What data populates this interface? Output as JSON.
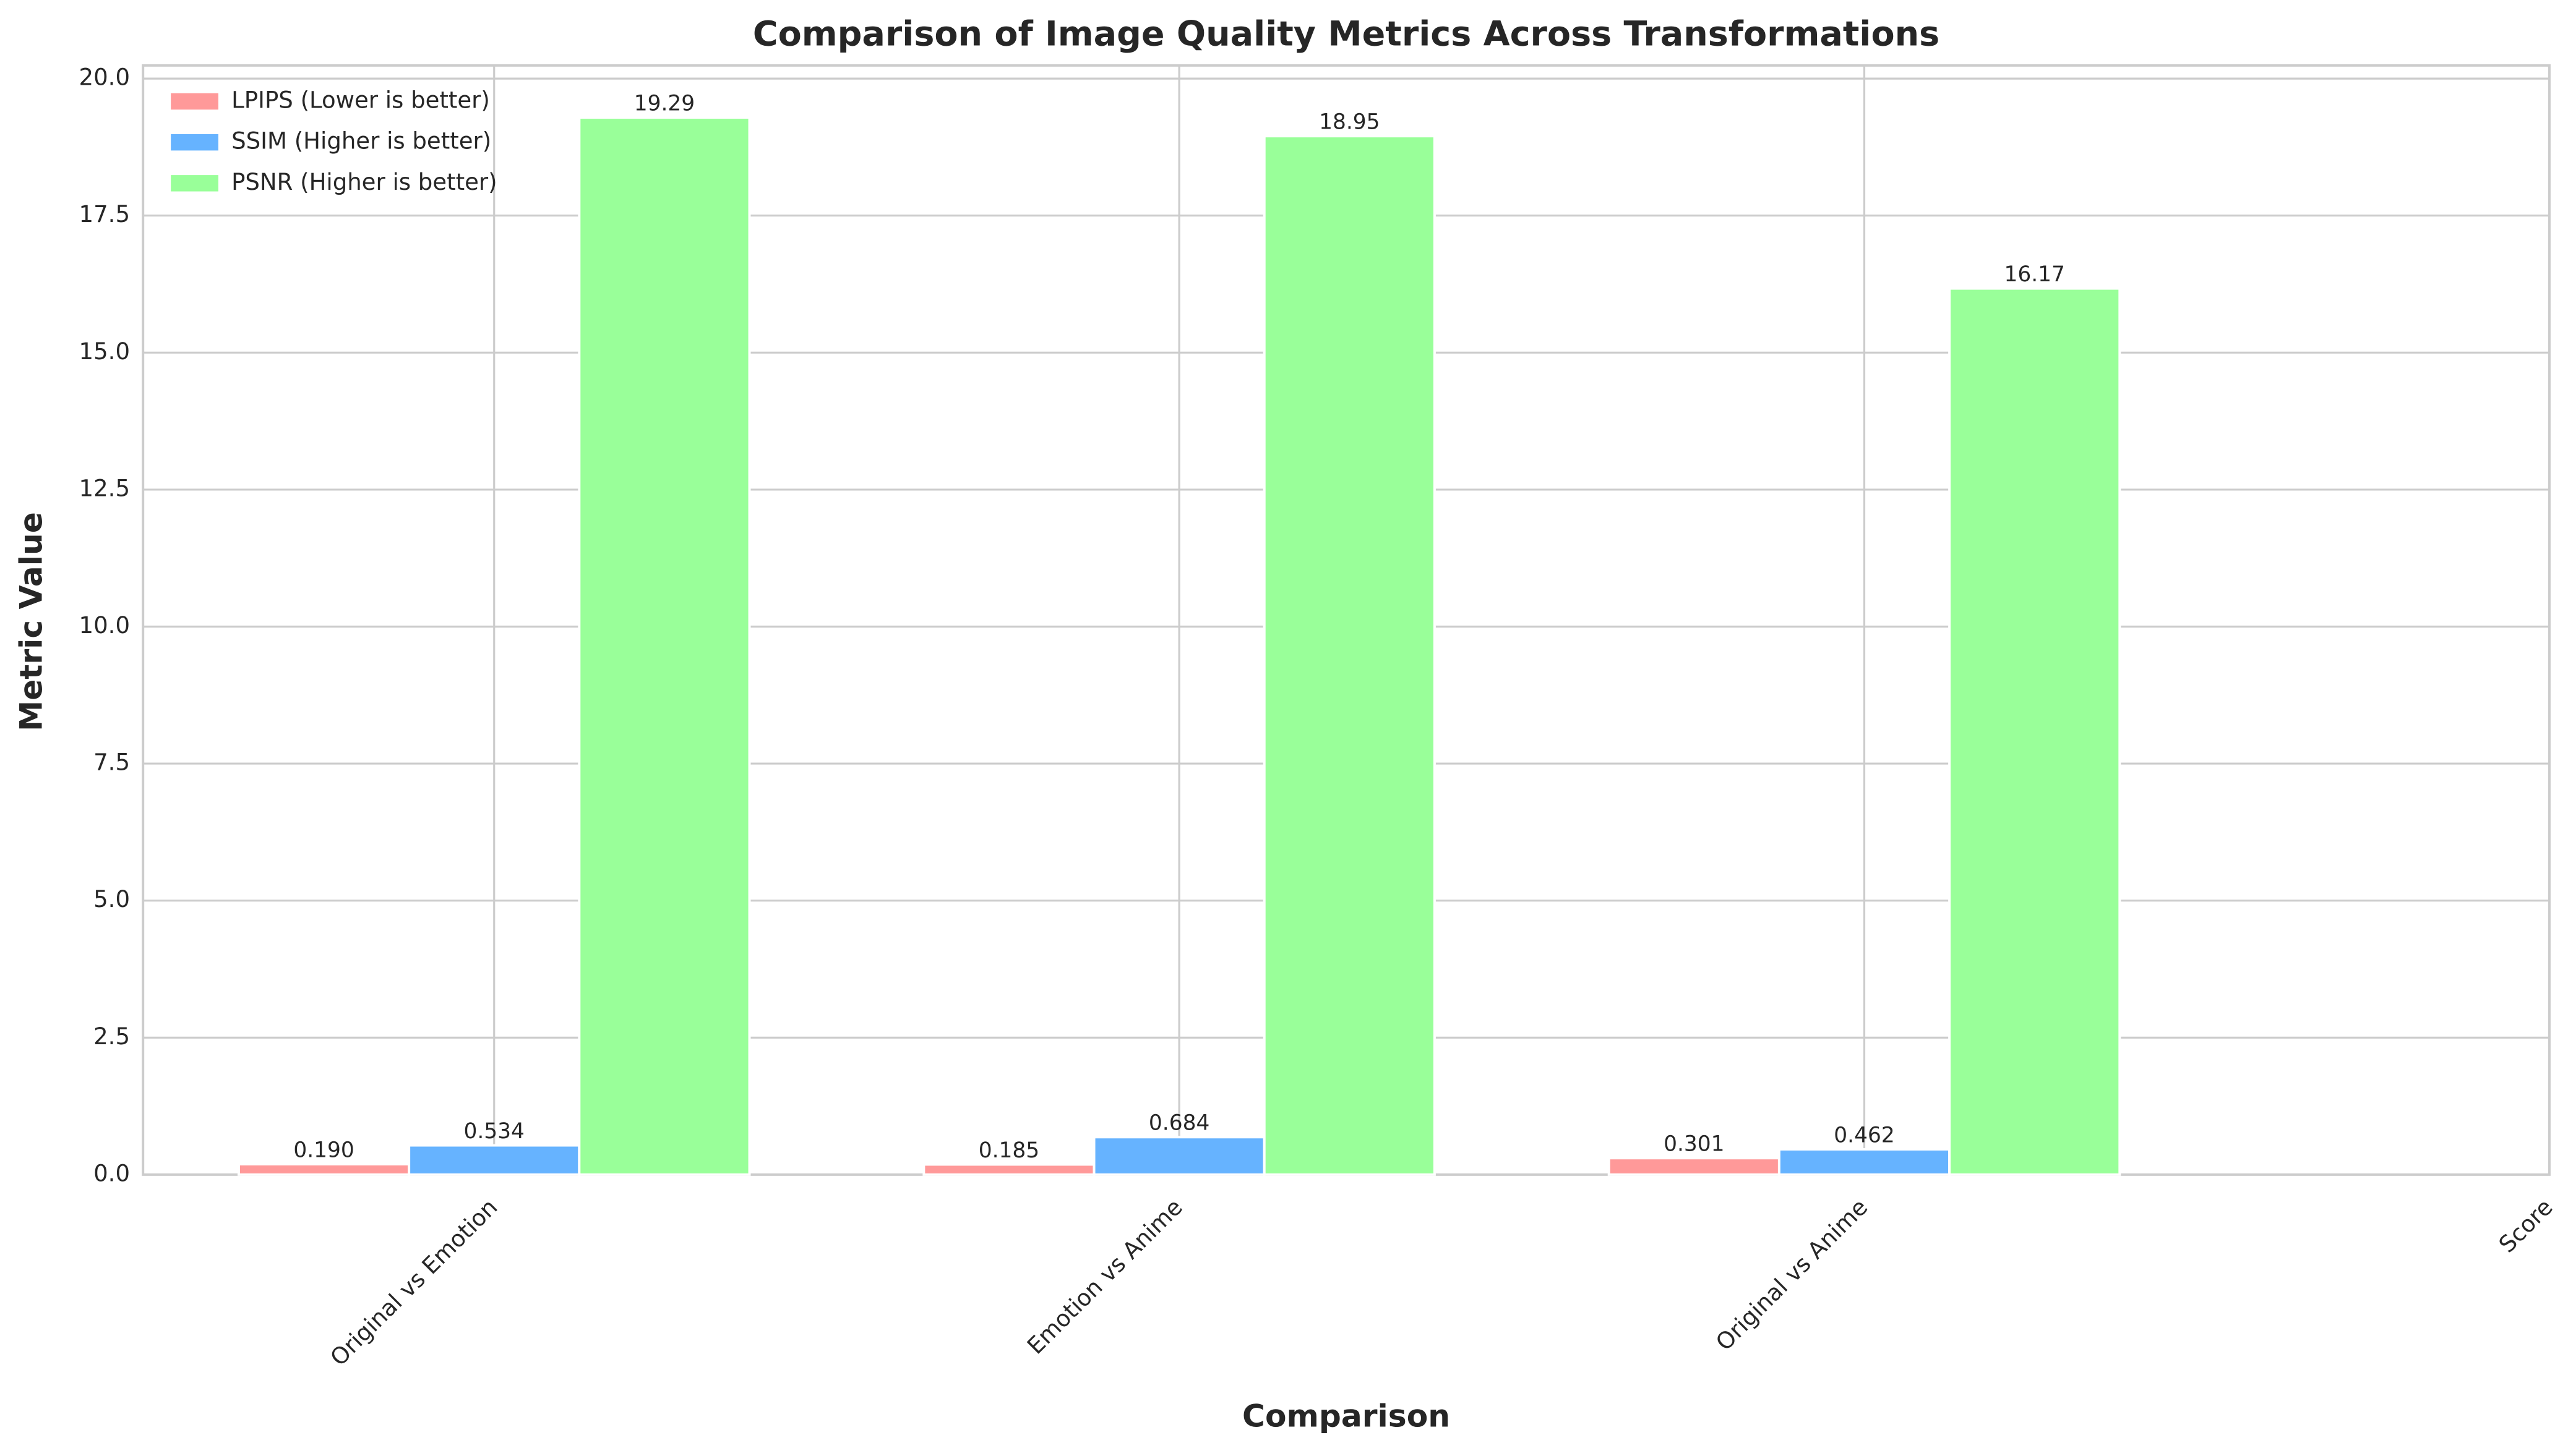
{
  "chart_data": {
    "type": "bar",
    "title": "Comparison of Image Quality Metrics Across Transformations",
    "xlabel": "Comparison",
    "ylabel": "Metric Value",
    "categories": [
      "Original vs Emotion",
      "Emotion vs Anime",
      "Original vs Anime",
      "Score"
    ],
    "series": [
      {
        "name": "LPIPS (Lower is better)",
        "color": "#ff9999",
        "values": [
          0.19,
          0.185,
          0.301,
          null
        ],
        "value_labels": [
          "0.190",
          "0.185",
          "0.301",
          null
        ]
      },
      {
        "name": "SSIM (Higher is better)",
        "color": "#66b3ff",
        "values": [
          0.534,
          0.684,
          0.462,
          null
        ]
      },
      {
        "name": "PSNR (Higher is better)",
        "color": "#99ff99",
        "values": [
          19.29,
          18.95,
          16.17,
          null
        ]
      }
    ],
    "ylim": [
      0,
      20.24
    ],
    "yticks": [
      {
        "value": 0,
        "label": "0.0"
      },
      2.5,
      {
        "value": 5,
        "label": "5.0"
      },
      7.5,
      {
        "value": 10,
        "label": "10.0"
      },
      12.5,
      {
        "value": 15,
        "label": "15.0"
      },
      17.5,
      {
        "value": 20,
        "label": "20.0"
      }
    ],
    "grid": true,
    "legend": "upper left"
  }
}
